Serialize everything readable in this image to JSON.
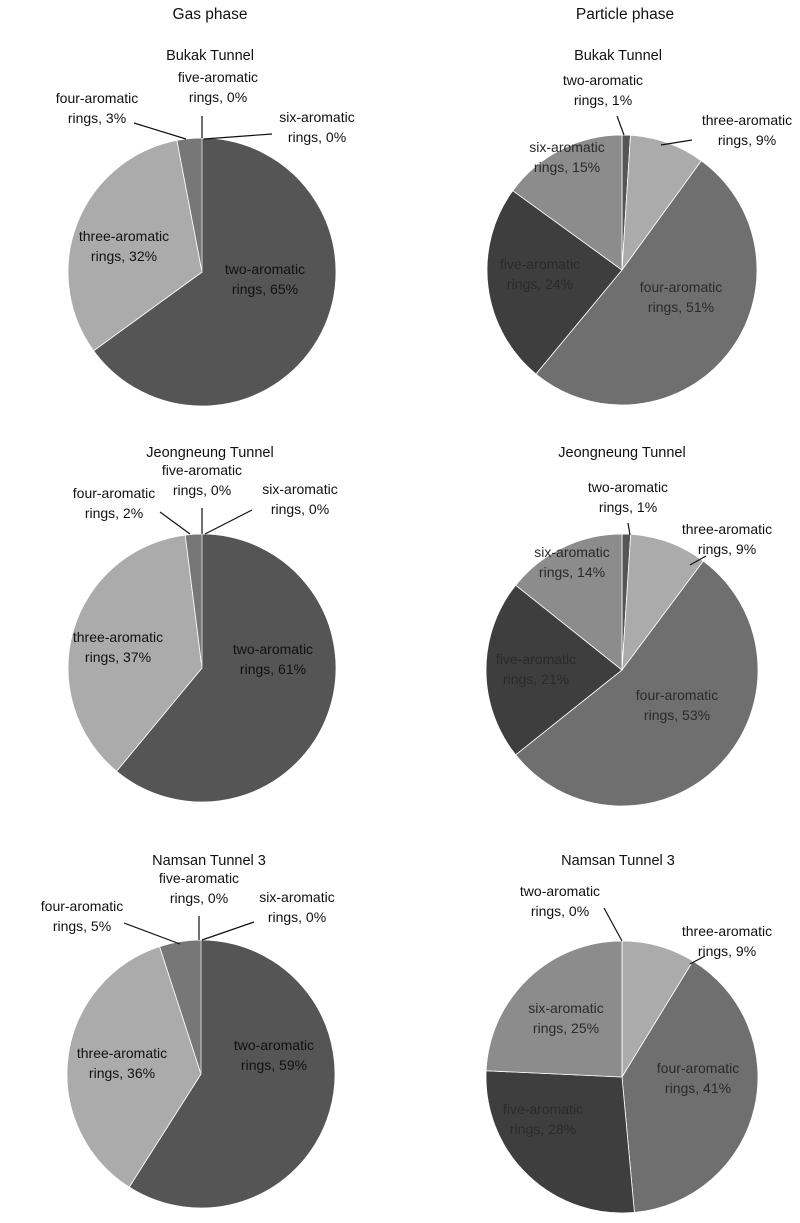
{
  "column_titles": {
    "gas": "Gas phase",
    "particle": "Particle phase"
  },
  "colors": {
    "two": "#555555",
    "three": "#ababab",
    "four": "#777777",
    "four_particle": "#6f6f6f",
    "five": "#5c5c5c",
    "five_particle": "#3e3e3e",
    "six": "#676767",
    "six_particle": "#8c8c8c",
    "label_dark": "#111111",
    "label_light": "#2a2a2a"
  },
  "chart_data": [
    {
      "type": "pie",
      "phase": "Gas phase",
      "title": "Bukak Tunnel",
      "slices": [
        {
          "name": "two-aromatic rings",
          "line1": "two-aromatic",
          "line2": "rings, 65%",
          "value": 65
        },
        {
          "name": "three-aromatic rings",
          "line1": "three-aromatic",
          "line2": "rings, 32%",
          "value": 32
        },
        {
          "name": "four-aromatic rings",
          "line1": "four-aromatic",
          "line2": "rings, 3%",
          "value": 3
        },
        {
          "name": "five-aromatic rings",
          "line1": "five-aromatic",
          "line2": "rings, 0%",
          "value": 0
        },
        {
          "name": "six-aromatic rings",
          "line1": "six-aromatic",
          "line2": "rings, 0%",
          "value": 0
        }
      ]
    },
    {
      "type": "pie",
      "phase": "Particle phase",
      "title": "Bukak Tunnel",
      "slices": [
        {
          "name": "two-aromatic rings",
          "line1": "two-aromatic",
          "line2": "rings, 1%",
          "value": 1
        },
        {
          "name": "three-aromatic rings",
          "line1": "three-aromatic",
          "line2": "rings, 9%",
          "value": 9
        },
        {
          "name": "four-aromatic rings",
          "line1": "four-aromatic",
          "line2": "rings, 51%",
          "value": 51
        },
        {
          "name": "five-aromatic rings",
          "line1": "five-aromatic",
          "line2": "rings, 24%",
          "value": 24
        },
        {
          "name": "six-aromatic rings",
          "line1": "six-aromatic",
          "line2": "rings, 15%",
          "value": 15
        }
      ]
    },
    {
      "type": "pie",
      "phase": "Gas phase",
      "title": "Jeongneung Tunnel",
      "slices": [
        {
          "name": "two-aromatic rings",
          "line1": "two-aromatic",
          "line2": "rings, 61%",
          "value": 61
        },
        {
          "name": "three-aromatic rings",
          "line1": "three-aromatic",
          "line2": "rings, 37%",
          "value": 37
        },
        {
          "name": "four-aromatic rings",
          "line1": "four-aromatic",
          "line2": "rings, 2%",
          "value": 2
        },
        {
          "name": "five-aromatic rings",
          "line1": "five-aromatic",
          "line2": "rings, 0%",
          "value": 0
        },
        {
          "name": "six-aromatic rings",
          "line1": "six-aromatic",
          "line2": "rings, 0%",
          "value": 0
        }
      ]
    },
    {
      "type": "pie",
      "phase": "Particle phase",
      "title": "Jeongneung Tunnel",
      "slices": [
        {
          "name": "two-aromatic rings",
          "line1": "two-aromatic",
          "line2": "rings, 1%",
          "value": 1
        },
        {
          "name": "three-aromatic rings",
          "line1": "three-aromatic",
          "line2": "rings, 9%",
          "value": 9
        },
        {
          "name": "four-aromatic rings",
          "line1": "four-aromatic",
          "line2": "rings, 53%",
          "value": 53
        },
        {
          "name": "five-aromatic rings",
          "line1": "five-aromatic",
          "line2": "rings, 21%",
          "value": 21
        },
        {
          "name": "six-aromatic rings",
          "line1": "six-aromatic",
          "line2": "rings, 14%",
          "value": 14
        }
      ]
    },
    {
      "type": "pie",
      "phase": "Gas phase",
      "title": "Namsan Tunnel 3",
      "slices": [
        {
          "name": "two-aromatic rings",
          "line1": "two-aromatic",
          "line2": "rings, 59%",
          "value": 59
        },
        {
          "name": "three-aromatic rings",
          "line1": "three-aromatic",
          "line2": "rings, 36%",
          "value": 36
        },
        {
          "name": "four-aromatic rings",
          "line1": "four-aromatic",
          "line2": "rings, 5%",
          "value": 5
        },
        {
          "name": "five-aromatic rings",
          "line1": "five-aromatic",
          "line2": "rings, 0%",
          "value": 0
        },
        {
          "name": "six-aromatic rings",
          "line1": "six-aromatic",
          "line2": "rings, 0%",
          "value": 0
        }
      ]
    },
    {
      "type": "pie",
      "phase": "Particle phase",
      "title": "Namsan Tunnel 3",
      "slices": [
        {
          "name": "two-aromatic rings",
          "line1": "two-aromatic",
          "line2": "rings, 0%",
          "value": 0
        },
        {
          "name": "three-aromatic rings",
          "line1": "three-aromatic",
          "line2": "rings, 9%",
          "value": 9
        },
        {
          "name": "four-aromatic rings",
          "line1": "four-aromatic",
          "line2": "rings, 41%",
          "value": 41
        },
        {
          "name": "five-aromatic rings",
          "line1": "five-aromatic",
          "line2": "rings, 28%",
          "value": 28
        },
        {
          "name": "six-aromatic rings",
          "line1": "six-aromatic",
          "line2": "rings, 25%",
          "value": 25
        }
      ]
    }
  ]
}
